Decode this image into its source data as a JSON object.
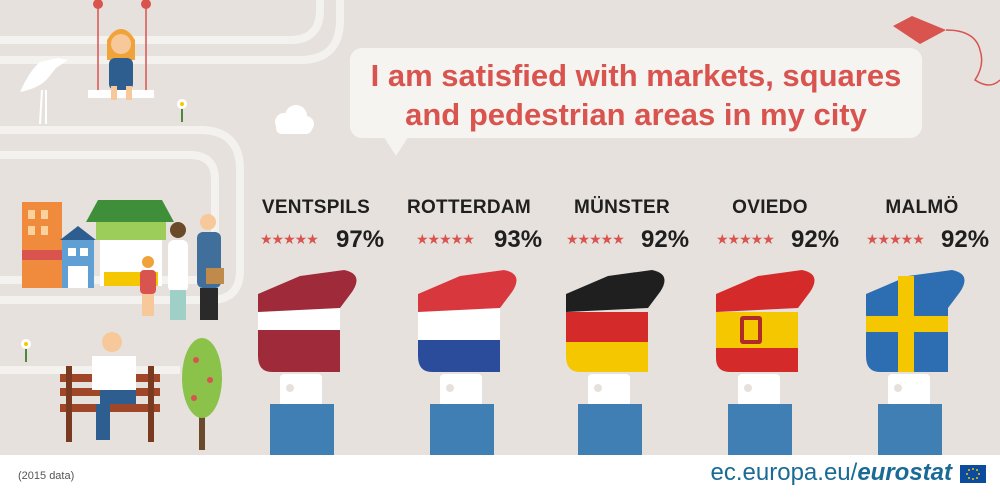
{
  "headline": {
    "line1": "I am satisfied with markets, squares",
    "line2": "and pedestrian areas in my city"
  },
  "cities": [
    {
      "name": "VENTSPILS",
      "stars": "★★★★★",
      "percent": "97%",
      "country": "Latvia"
    },
    {
      "name": "ROTTERDAM",
      "stars": "★★★★★",
      "percent": "93%",
      "country": "Netherlands"
    },
    {
      "name": "MÜNSTER",
      "stars": "★★★★★",
      "percent": "92%",
      "country": "Germany"
    },
    {
      "name": "OVIEDO",
      "stars": "★★★★★",
      "percent": "92%",
      "country": "Spain"
    },
    {
      "name": "MALMÖ",
      "stars": "★★★★★",
      "percent": "92%",
      "country": "Sweden"
    }
  ],
  "footer": {
    "note": "(2015 data)",
    "site": "ec.europa.eu/",
    "brand": "eurostat"
  },
  "colors": {
    "background": "#e6e1dc",
    "headline": "#d9534f",
    "star": "#d9534f",
    "sleeve": "#3f7fb4",
    "latvia": "#9e2a3a",
    "netherlands_red": "#d8373e",
    "netherlands_blue": "#2b4b9b",
    "germany_red": "#d42a2a",
    "germany_gold": "#f5c700",
    "spain_red": "#d42a2a",
    "spain_yellow": "#f5c700",
    "sweden_blue": "#2d6db2",
    "sweden_yellow": "#f5c700",
    "brand": "#1a6a96"
  },
  "icons": [
    "kite-icon",
    "bird-icon",
    "swing-girl-icon",
    "cloud-icon",
    "flower-icon",
    "houses-icon",
    "market-stall-icon",
    "family-icon",
    "bench-reader-icon",
    "tree-icon",
    "thumbs-up-icon",
    "eu-flag-icon"
  ]
}
